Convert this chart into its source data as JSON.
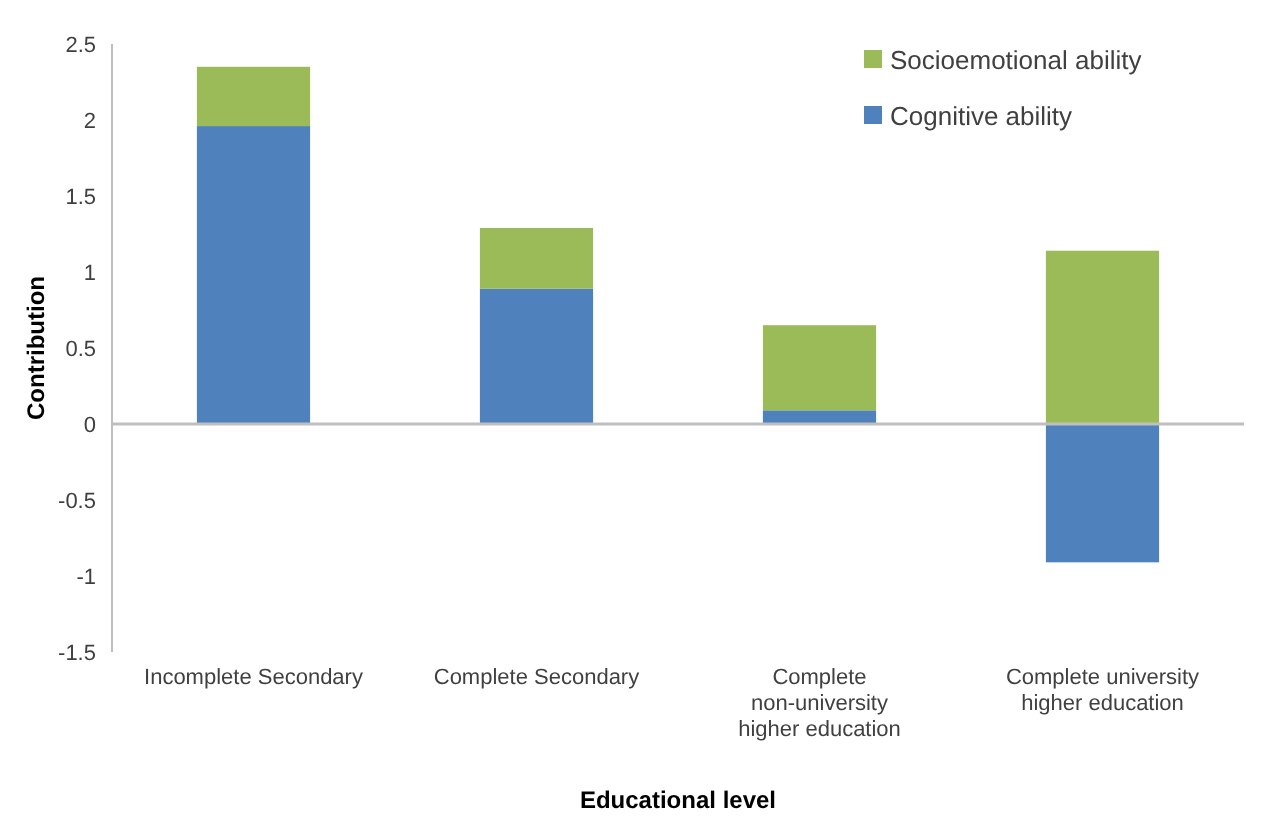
{
  "chart_data": {
    "type": "bar",
    "stacked": true,
    "xlabel": "Educational level",
    "ylabel": "Contribution",
    "categories": [
      "Incomplete Secondary",
      "Complete Secondary",
      "Complete non-university higher education",
      "Complete university higher education"
    ],
    "series": [
      {
        "name": "Cognitive ability",
        "color": "#4f81bd",
        "values": [
          1.96,
          0.89,
          0.09,
          -0.91
        ]
      },
      {
        "name": "Socioemotional ability",
        "color": "#9bbb59",
        "values": [
          0.39,
          0.4,
          0.56,
          1.14
        ]
      }
    ],
    "ylim": [
      -1.5,
      2.5
    ],
    "yticks": [
      -1.5,
      -1,
      -0.5,
      0,
      0.5,
      1,
      1.5,
      2,
      2.5
    ],
    "legend": "top right"
  }
}
